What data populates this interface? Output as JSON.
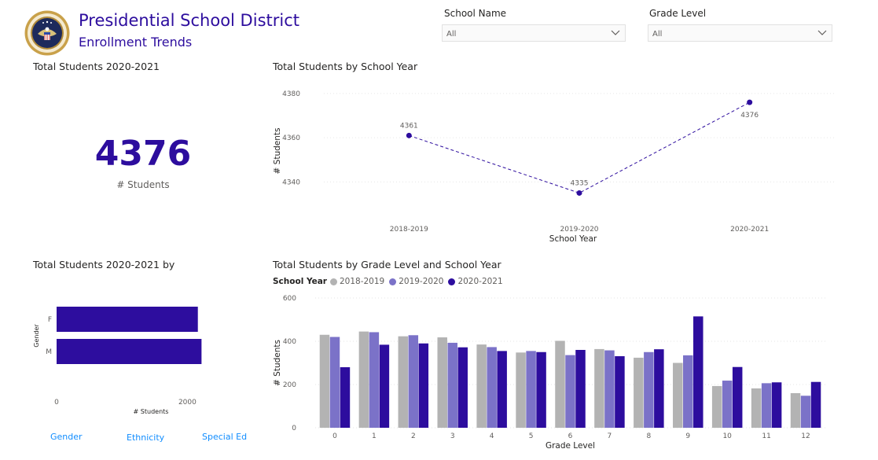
{
  "header": {
    "title": "Presidential School District",
    "subtitle": "Enrollment Trends"
  },
  "filters": {
    "school_name": {
      "label": "School Name",
      "value": "All"
    },
    "grade_level": {
      "label": "Grade Level",
      "value": "All"
    }
  },
  "kpi_card": {
    "title": "Total Students 2020-2021",
    "value": "4376",
    "label": "# Students"
  },
  "gender_card": {
    "title": "Total Students 2020-2021 by"
  },
  "tabs": [
    "Gender",
    "Ethnicity",
    "Special Ed"
  ],
  "colors": {
    "accent": "#2d0d9e",
    "series_2018": "#b3b3b3",
    "series_2019": "#7b72c8",
    "series_2020": "#2d0d9e",
    "link": "#118dff"
  },
  "chart_data": [
    {
      "type": "line",
      "title": "Total Students by School Year",
      "xlabel": "School Year",
      "ylabel": "# Students",
      "categories": [
        "2018-2019",
        "2019-2020",
        "2020-2021"
      ],
      "values": [
        4361,
        4335,
        4376
      ],
      "data_labels": [
        "4361",
        "4335",
        "4376"
      ],
      "yticks": [
        4340,
        4360,
        4380
      ],
      "ytick_labels": [
        "4340",
        "4360",
        "4380"
      ],
      "ylim": [
        4322,
        4386
      ],
      "line_style": "dashed",
      "grid": true
    },
    {
      "type": "bar",
      "orientation": "horizontal",
      "xlabel": "# Students",
      "ylabel": "Gender",
      "categories": [
        "F",
        "M"
      ],
      "values": [
        2160,
        2216
      ],
      "xticks": [
        0,
        2000
      ],
      "xtick_labels": [
        "0",
        "2000"
      ],
      "xlim": [
        0,
        2500
      ]
    },
    {
      "type": "bar",
      "title": "Total Students by Grade Level and School Year",
      "xlabel": "Grade Level",
      "ylabel": "# Students",
      "legend_title": "School Year",
      "legend_placement": "top-left",
      "categories": [
        "0",
        "1",
        "2",
        "3",
        "4",
        "5",
        "6",
        "7",
        "8",
        "9",
        "10",
        "11",
        "12"
      ],
      "series": [
        {
          "name": "2018-2019",
          "values": [
            430,
            445,
            423,
            418,
            385,
            348,
            402,
            364,
            324,
            300,
            193,
            182,
            160
          ]
        },
        {
          "name": "2019-2020",
          "values": [
            420,
            442,
            428,
            393,
            373,
            355,
            336,
            358,
            350,
            335,
            218,
            206,
            148
          ]
        },
        {
          "name": "2020-2021",
          "values": [
            280,
            384,
            390,
            372,
            355,
            350,
            360,
            331,
            363,
            515,
            281,
            210,
            212
          ]
        }
      ],
      "yticks": [
        0,
        200,
        400,
        600
      ],
      "ytick_labels": [
        "0",
        "200",
        "400",
        "600"
      ],
      "ylim": [
        0,
        600
      ],
      "grid": true
    }
  ]
}
